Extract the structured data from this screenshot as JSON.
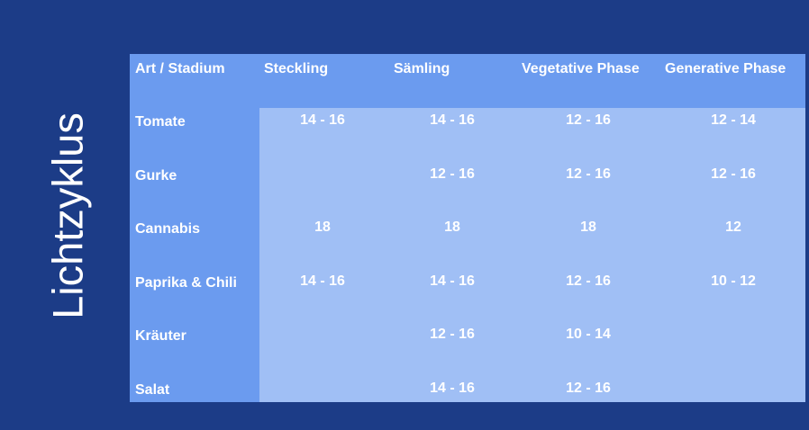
{
  "title": "Lichtzyklus",
  "colors": {
    "background": "#1c3c87",
    "header": "#6b9bef",
    "cells": "#a0bff5",
    "text": "#ffffff"
  },
  "columns": [
    "Art / Stadium",
    "Steckling",
    "Sämling",
    "Vegetative Phase",
    "Generative Phase"
  ],
  "rows": [
    {
      "name": "Tomate",
      "values": [
        "14 - 16",
        "14 - 16",
        "12 - 16",
        "12 - 14"
      ]
    },
    {
      "name": "Gurke",
      "values": [
        "",
        "12 - 16",
        "12 - 16",
        "12 - 16"
      ]
    },
    {
      "name": "Cannabis",
      "values": [
        "18",
        "18",
        "18",
        "12"
      ]
    },
    {
      "name": "Paprika & Chili",
      "values": [
        "14 - 16",
        "14 - 16",
        "12 - 16",
        "10 - 12"
      ]
    },
    {
      "name": "Kräuter",
      "values": [
        "",
        "12 - 16",
        "10 - 14",
        ""
      ]
    },
    {
      "name": "Salat",
      "values": [
        "",
        "14 - 16",
        "12 - 16",
        ""
      ]
    }
  ]
}
